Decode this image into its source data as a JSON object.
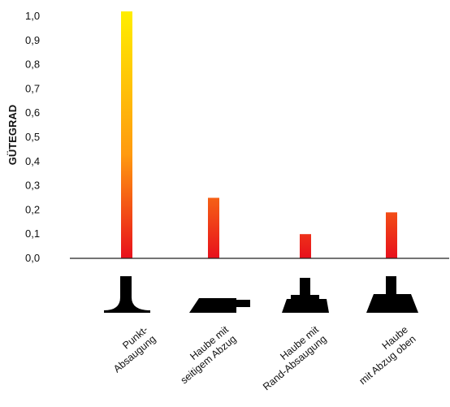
{
  "chart_data": {
    "type": "bar",
    "title": "",
    "xlabel": "",
    "ylabel": "GÜTEGRAD",
    "ylim": [
      0,
      1.0
    ],
    "yticks": [
      "0,0",
      "0,1",
      "0,2",
      "0,3",
      "0,4",
      "0,5",
      "0,6",
      "0,7",
      "0,8",
      "0,9",
      "1,0"
    ],
    "grid": false,
    "legend": "none",
    "categories": [
      [
        "Punkt-",
        "Absaugung"
      ],
      [
        "Haube mit",
        "seitigem Abzug"
      ],
      [
        "Haube mit",
        "Rand-Absaugung"
      ],
      [
        "Haube",
        "mit Abzug oben"
      ]
    ],
    "values": [
      1.02,
      0.25,
      0.1,
      0.19
    ],
    "bar_gradient": [
      "#e8101c",
      "#ff9a10",
      "#ffee00"
    ],
    "icons": [
      "point-extraction-icon",
      "side-extraction-hood-icon",
      "rim-extraction-hood-icon",
      "top-extraction-hood-icon"
    ]
  }
}
